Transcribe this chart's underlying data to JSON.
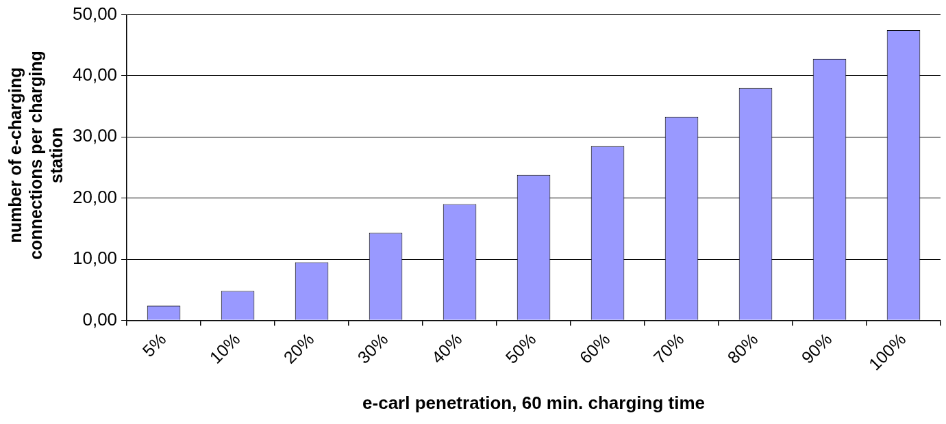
{
  "chart_data": {
    "type": "bar",
    "xlabel": "e-carl penetration, 60 min. charging time",
    "ylabel": "number of e-charging connections per charging station",
    "categories": [
      "5%",
      "10%",
      "20%",
      "30%",
      "40%",
      "50%",
      "60%",
      "70%",
      "80%",
      "90%",
      "100%"
    ],
    "values": [
      2.4,
      4.8,
      9.5,
      14.3,
      19,
      23.8,
      28.5,
      33.3,
      38,
      42.8,
      47.5
    ],
    "color": "#9999ff",
    "ylim": [
      0,
      50
    ],
    "yticks": [
      {
        "value": 0,
        "label": "0,00"
      },
      {
        "value": 10,
        "label": "10,00"
      },
      {
        "value": 20,
        "label": "20,00"
      },
      {
        "value": 30,
        "label": "30,00"
      },
      {
        "value": 40,
        "label": "40,00"
      },
      {
        "value": 50,
        "label": "50,00"
      }
    ],
    "grid": "y",
    "legend": false
  }
}
